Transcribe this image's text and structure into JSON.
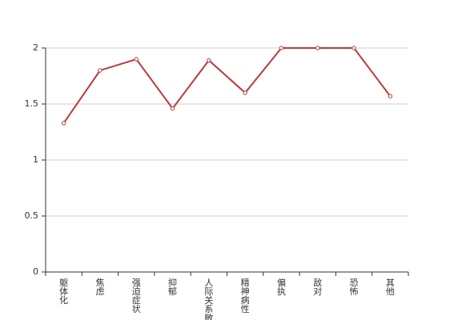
{
  "chart_data": {
    "type": "line",
    "categories": [
      "躯体化",
      "焦虑",
      "强迫症状",
      "抑郁",
      "人际关系敏感",
      "精神病性",
      "偏执",
      "敌对",
      "恐怖",
      "其他"
    ],
    "series": [
      {
        "color": "#b93a3a",
        "values": [
          1.33,
          1.8,
          1.9,
          1.46,
          1.89,
          1.6,
          2,
          2,
          2,
          1.57
        ]
      }
    ],
    "ylim": [
      0,
      2
    ],
    "yticks": [
      0,
      0.5,
      1,
      1.5,
      2
    ],
    "grid": true
  }
}
